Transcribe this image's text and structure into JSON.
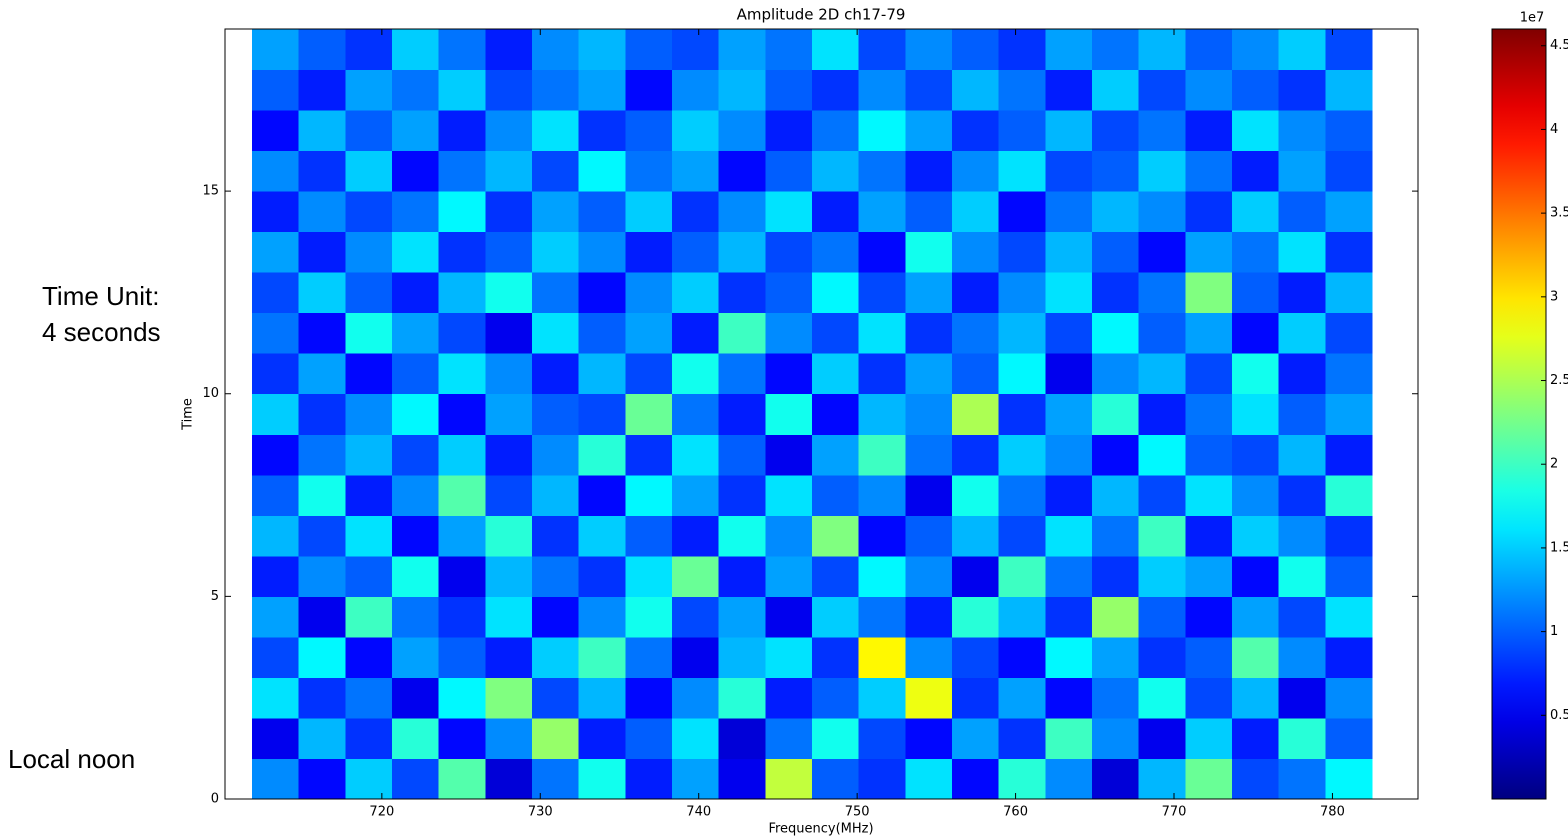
{
  "chart_data": {
    "type": "heatmap",
    "title": "Amplitude 2D ch17-79",
    "xlabel": "Frequency(MHz)",
    "ylabel": "Time",
    "annotations": [
      "Time Unit:",
      "4 seconds",
      "Local noon"
    ],
    "xlim": [
      710.1,
      785.4
    ],
    "ylim": [
      0,
      19
    ],
    "extent": [
      711.8,
      782.5
    ],
    "xticks": [
      720,
      730,
      740,
      750,
      760,
      770,
      780
    ],
    "yticks": [
      0,
      5,
      10,
      15
    ],
    "clim": [
      0,
      4.6
    ],
    "cticks": [
      0.5,
      1.0,
      1.5,
      2.0,
      2.5,
      3.0,
      3.5,
      4.0,
      4.5
    ],
    "cbar_offset": "1e7",
    "colormap": "jet",
    "values": [
      [
        1.2,
        0.6,
        1.5,
        0.9,
        2.1,
        0.4,
        1.1,
        1.8,
        0.7,
        1.3,
        0.5,
        2.6,
        1.0,
        0.8,
        1.6,
        0.6,
        1.9,
        1.2,
        0.4,
        1.4,
        2.2,
        0.9,
        1.1,
        1.7
      ],
      [
        0.5,
        1.4,
        0.8,
        1.9,
        0.6,
        1.2,
        2.4,
        0.7,
        1.0,
        1.6,
        0.4,
        1.1,
        1.8,
        0.9,
        0.6,
        1.3,
        0.8,
        2.0,
        1.2,
        0.5,
        1.5,
        0.7,
        1.9,
        1.0
      ],
      [
        1.6,
        0.8,
        1.1,
        0.5,
        1.7,
        2.3,
        0.9,
        1.4,
        0.6,
        1.2,
        1.9,
        0.7,
        1.0,
        1.5,
        2.8,
        0.8,
        1.3,
        0.6,
        1.1,
        1.8,
        0.9,
        1.4,
        0.5,
        1.2
      ],
      [
        0.9,
        1.7,
        0.6,
        1.3,
        1.0,
        0.7,
        1.5,
        2.0,
        1.1,
        0.5,
        1.4,
        1.6,
        0.8,
        2.9,
        1.2,
        0.9,
        0.6,
        1.7,
        1.3,
        0.8,
        1.0,
        2.1,
        1.2,
        0.7
      ],
      [
        1.3,
        0.5,
        2.0,
        1.1,
        0.8,
        1.6,
        0.6,
        1.2,
        1.8,
        0.9,
        1.3,
        0.5,
        1.5,
        1.1,
        0.7,
        1.9,
        1.4,
        0.8,
        2.4,
        1.0,
        0.6,
        1.3,
        0.9,
        1.6
      ],
      [
        0.7,
        1.2,
        1.0,
        1.8,
        0.5,
        1.4,
        1.1,
        0.8,
        1.6,
        2.2,
        0.7,
        1.3,
        0.9,
        1.7,
        1.2,
        0.5,
        2.0,
        1.1,
        0.8,
        1.5,
        1.3,
        0.6,
        1.8,
        1.0
      ],
      [
        1.4,
        0.9,
        1.6,
        0.6,
        1.3,
        1.9,
        0.8,
        1.5,
        1.0,
        0.7,
        1.8,
        1.2,
        2.3,
        0.6,
        1.0,
        1.4,
        0.9,
        1.6,
        1.1,
        2.0,
        0.7,
        1.5,
        1.2,
        0.8
      ],
      [
        1.0,
        1.8,
        0.7,
        1.2,
        2.1,
        0.9,
        1.4,
        0.6,
        1.7,
        1.3,
        0.8,
        1.6,
        1.0,
        1.2,
        0.5,
        1.8,
        1.1,
        0.7,
        1.4,
        0.9,
        1.6,
        1.2,
        0.8,
        1.9
      ],
      [
        0.6,
        1.1,
        1.4,
        0.9,
        1.5,
        0.7,
        1.2,
        1.9,
        0.8,
        1.6,
        1.0,
        0.5,
        1.3,
        2.0,
        1.1,
        0.8,
        1.5,
        1.2,
        0.6,
        1.7,
        1.0,
        0.9,
        1.4,
        0.7
      ],
      [
        1.5,
        0.8,
        1.2,
        1.7,
        0.6,
        1.3,
        1.0,
        0.9,
        2.2,
        1.1,
        0.7,
        1.8,
        0.6,
        1.4,
        1.2,
        2.5,
        0.8,
        1.3,
        1.9,
        0.7,
        1.1,
        1.6,
        1.0,
        1.3
      ],
      [
        0.8,
        1.3,
        0.6,
        1.0,
        1.6,
        1.2,
        0.7,
        1.4,
        0.9,
        1.8,
        1.1,
        0.6,
        1.5,
        0.8,
        1.3,
        1.0,
        1.7,
        0.5,
        1.2,
        1.4,
        0.9,
        1.8,
        0.7,
        1.1
      ],
      [
        1.1,
        0.6,
        1.8,
        1.3,
        0.9,
        0.5,
        1.6,
        1.0,
        1.3,
        0.7,
        2.0,
        1.2,
        0.9,
        1.6,
        0.8,
        1.1,
        1.4,
        0.9,
        1.7,
        1.0,
        1.3,
        0.6,
        1.5,
        0.9
      ],
      [
        0.9,
        1.5,
        1.0,
        0.7,
        1.4,
        1.8,
        1.1,
        0.6,
        1.2,
        1.5,
        0.8,
        1.0,
        1.7,
        0.9,
        1.3,
        0.7,
        1.2,
        1.6,
        0.8,
        1.1,
        2.3,
        1.0,
        0.7,
        1.4
      ],
      [
        1.3,
        0.7,
        1.2,
        1.6,
        0.8,
        1.0,
        1.5,
        1.2,
        0.7,
        1.0,
        1.4,
        0.9,
        1.1,
        0.6,
        1.8,
        1.2,
        0.9,
        1.4,
        1.0,
        0.6,
        1.3,
        1.1,
        1.6,
        0.8
      ],
      [
        0.7,
        1.2,
        0.9,
        1.1,
        1.7,
        0.8,
        1.3,
        1.0,
        1.5,
        0.8,
        1.2,
        1.6,
        0.7,
        1.3,
        1.0,
        1.5,
        0.6,
        1.1,
        1.4,
        1.2,
        0.8,
        1.5,
        1.0,
        1.3
      ],
      [
        1.2,
        0.8,
        1.5,
        0.6,
        1.1,
        1.4,
        0.9,
        1.7,
        1.1,
        1.3,
        0.6,
        1.0,
        1.4,
        1.1,
        0.7,
        1.2,
        1.6,
        0.9,
        1.0,
        1.5,
        1.1,
        0.7,
        1.3,
        0.9
      ],
      [
        0.6,
        1.4,
        1.0,
        1.3,
        0.7,
        1.2,
        1.6,
        0.8,
        1.0,
        1.5,
        1.2,
        0.7,
        1.1,
        1.7,
        1.3,
        0.8,
        1.0,
        1.4,
        0.9,
        1.1,
        0.7,
        1.6,
        1.2,
        1.0
      ],
      [
        1.0,
        0.7,
        1.3,
        1.1,
        1.5,
        0.9,
        1.1,
        1.3,
        0.6,
        1.2,
        1.4,
        1.0,
        0.8,
        1.2,
        0.9,
        1.4,
        1.1,
        0.7,
        1.5,
        0.9,
        1.2,
        1.0,
        0.8,
        1.4
      ],
      [
        1.3,
        1.0,
        0.8,
        1.5,
        1.1,
        0.7,
        1.2,
        1.4,
        1.0,
        0.9,
        1.3,
        1.1,
        1.6,
        0.9,
        1.2,
        1.0,
        0.8,
        1.3,
        1.1,
        1.4,
        1.0,
        1.2,
        1.5,
        0.9
      ]
    ]
  }
}
